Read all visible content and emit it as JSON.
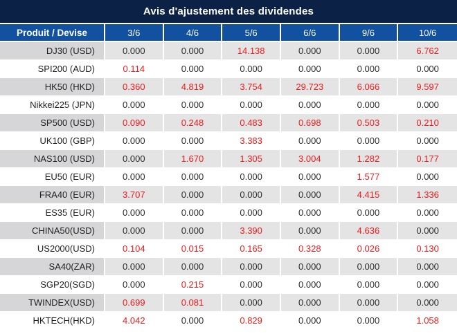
{
  "title": "Avis d'ajustement des dividendes",
  "colors": {
    "title_bg": "#0b2145",
    "header_bg": "#11519f",
    "stripe_product_bg": "#d6d6d8",
    "stripe_value_bg": "#e4e4e4",
    "value_red": "#ee1b1b",
    "value_dark": "#2b2b2b"
  },
  "table": {
    "product_header": "Produit / Devise",
    "date_columns": [
      "3/6",
      "4/6",
      "5/6",
      "6/6",
      "9/6",
      "10/6"
    ],
    "rows": [
      {
        "product": "DJ30 (USD)",
        "values": [
          "0.000",
          "0.000",
          "14.138",
          "0.000",
          "0.000",
          "6.762"
        ],
        "red": [
          false,
          false,
          true,
          false,
          false,
          true
        ]
      },
      {
        "product": "SPI200 (AUD)",
        "values": [
          "0.114",
          "0.000",
          "0.000",
          "0.000",
          "0.000",
          "0.000"
        ],
        "red": [
          true,
          false,
          false,
          false,
          false,
          false
        ]
      },
      {
        "product": "HK50 (HKD)",
        "values": [
          "0.360",
          "4.819",
          "3.754",
          "29.723",
          "6.066",
          "9.597"
        ],
        "red": [
          true,
          true,
          true,
          true,
          true,
          true
        ]
      },
      {
        "product": "Nikkei225 (JPN)",
        "values": [
          "0.000",
          "0.000",
          "0.000",
          "0.000",
          "0.000",
          "0.000"
        ],
        "red": [
          false,
          false,
          false,
          false,
          false,
          false
        ]
      },
      {
        "product": "SP500 (USD)",
        "values": [
          "0.090",
          "0.248",
          "0.483",
          "0.698",
          "0.503",
          "0.210"
        ],
        "red": [
          true,
          true,
          true,
          true,
          true,
          true
        ]
      },
      {
        "product": "UK100 (GBP)",
        "values": [
          "0.000",
          "0.000",
          "3.383",
          "0.000",
          "0.000",
          "0.000"
        ],
        "red": [
          false,
          false,
          true,
          false,
          false,
          false
        ]
      },
      {
        "product": "NAS100 (USD)",
        "values": [
          "0.000",
          "1.670",
          "1.305",
          "3.004",
          "1.282",
          "0.177"
        ],
        "red": [
          false,
          true,
          true,
          true,
          true,
          true
        ]
      },
      {
        "product": "EU50 (EUR)",
        "values": [
          "0.000",
          "0.000",
          "0.000",
          "0.000",
          "1.577",
          "0.000"
        ],
        "red": [
          false,
          false,
          false,
          false,
          true,
          false
        ]
      },
      {
        "product": "FRA40 (EUR)",
        "values": [
          "3.707",
          "0.000",
          "0.000",
          "0.000",
          "4.415",
          "1.336"
        ],
        "red": [
          true,
          false,
          false,
          false,
          true,
          true
        ]
      },
      {
        "product": "ES35 (EUR)",
        "values": [
          "0.000",
          "0.000",
          "0.000",
          "0.000",
          "0.000",
          "0.000"
        ],
        "red": [
          false,
          false,
          false,
          false,
          false,
          false
        ]
      },
      {
        "product": "CHINA50(USD)",
        "values": [
          "0.000",
          "0.000",
          "3.390",
          "0.000",
          "4.636",
          "0.000"
        ],
        "red": [
          false,
          false,
          true,
          false,
          true,
          false
        ]
      },
      {
        "product": "US2000(USD)",
        "values": [
          "0.104",
          "0.015",
          "0.165",
          "0.328",
          "0.026",
          "0.130"
        ],
        "red": [
          true,
          true,
          true,
          true,
          true,
          true
        ]
      },
      {
        "product": "SA40(ZAR)",
        "values": [
          "0.000",
          "0.000",
          "0.000",
          "0.000",
          "0.000",
          "0.000"
        ],
        "red": [
          false,
          false,
          false,
          false,
          false,
          false
        ]
      },
      {
        "product": "SGP20(SGD)",
        "values": [
          "0.000",
          "0.215",
          "0.000",
          "0.000",
          "0.000",
          "0.000"
        ],
        "red": [
          false,
          true,
          false,
          false,
          false,
          false
        ]
      },
      {
        "product": "TWINDEX(USD)",
        "values": [
          "0.699",
          "0.081",
          "0.000",
          "0.000",
          "0.000",
          "0.000"
        ],
        "red": [
          true,
          true,
          false,
          false,
          false,
          false
        ]
      },
      {
        "product": "HKTECH(HKD)",
        "values": [
          "4.042",
          "0.000",
          "0.829",
          "0.000",
          "0.000",
          "1.058"
        ],
        "red": [
          true,
          false,
          true,
          false,
          false,
          true
        ]
      }
    ]
  }
}
